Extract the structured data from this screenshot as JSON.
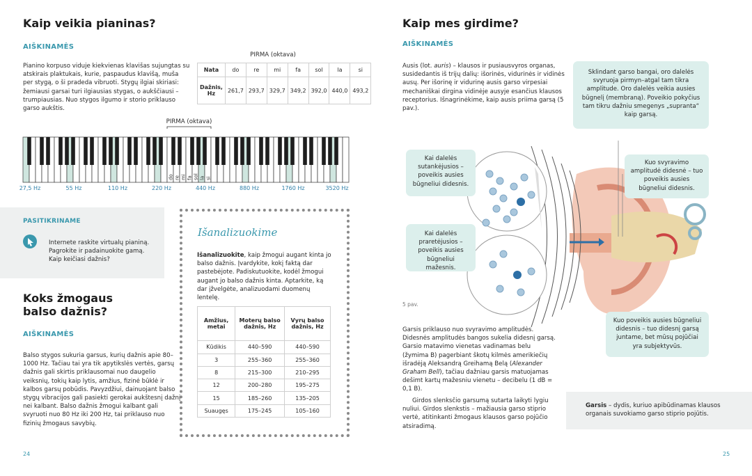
{
  "left": {
    "title": "Kaip veikia pianinas?",
    "label": "AIŠKINAMĖS",
    "text": "Pianino korpuso viduje kiekvienas klavišas sujungtas su atskirais plaktukais, kurie, paspaudus klavišą, muša per stygą, o ši pradeda vibruoti. Stygų ilgiai skiriasi: žemiausi garsai turi ilgiausias stygas, o aukščiausi – trumpiausias. Nuo stygos ilgumo ir storio priklauso garso aukštis.",
    "note_table": {
      "caption": "PIRMA (oktava)",
      "head": "Nata",
      "notes": [
        "do",
        "re",
        "mi",
        "fa",
        "sol",
        "la",
        "si"
      ],
      "row_label": "Dažnis, Hz",
      "freqs": [
        "261,7",
        "293,7",
        "329,7",
        "349,2",
        "392,0",
        "440,0",
        "493,2"
      ]
    },
    "piano": {
      "label": "PIRMA (oktava)",
      "key_notes": [
        "do",
        "re",
        "mi",
        "fa",
        "sol",
        "la",
        "si"
      ],
      "freq_labels": [
        "27,5 Hz",
        "55 Hz",
        "110 Hz",
        "220 Hz",
        "440 Hz",
        "880 Hz",
        "1760 Hz",
        "3520 Hz"
      ]
    },
    "check": {
      "label": "PASITIKRINAME",
      "text": "Internete raskite virtualų pianiną. Pagrokite ir padainuokite gamą. Kaip keičiasi dažnis?"
    },
    "voice": {
      "title": "Koks žmogaus balso dažnis?",
      "label": "AIŠKINAMĖS",
      "text": "Balso stygos sukuria garsus, kurių dažnis apie 80–1000 Hz. Tačiau tai yra tik apytikslės vertės, garsų dažnis gali skirtis priklausomai nuo daugelio veiksnių, tokių kaip lytis, amžius, fizinė būklė ir kalbos garsų pobūdis. Pavyzdžiui, dainuojant balso stygų vibracijos gali pasiekti gerokai aukštesnį dažnį nei kalbant. Balso dažnis žmogui kalbant gali svyruoti nuo 80 Hz iki 200 Hz, tai priklauso nuo fizinių žmogaus savybių."
    },
    "analyze": {
      "heading": "Išanalizuokime",
      "bold": "Išanalizuokite",
      "text": ", kaip žmogui augant kinta jo balso dažnis. Įvardykite, kokį faktą dar pastebėjote. Padiskutuokite, kodėl žmogui augant jo balso dažnis kinta. Aptarkite, ką dar įžvelgėte, analizuodami duomenų lentelę.",
      "table": {
        "header": [
          "Amžius, metai",
          "Moterų balso dažnis, Hz",
          "Vyrų balso dažnis, Hz"
        ],
        "rows": [
          [
            "Kūdikis",
            "440–590",
            "440–590"
          ],
          [
            "3",
            "255–360",
            "255–360"
          ],
          [
            "8",
            "215–300",
            "210–295"
          ],
          [
            "12",
            "200–280",
            "195–275"
          ],
          [
            "15",
            "185–260",
            "135–205"
          ],
          [
            "Suaugęs",
            "175–245",
            "105–160"
          ]
        ]
      }
    },
    "page": "24"
  },
  "right": {
    "title": "Kaip mes girdime?",
    "label": "AIŠKINAMĖS",
    "text": [
      "Ausis (lot. ",
      "auris",
      ") – klausos ir pusiausvyros organas, susidedantis iš trijų dalių: išorinės, vidurinės ir vidinės ausų. Per išorinę ir vidurinę ausis garso virpesiai mechaniškai dirgina vidinėje ausyje esančius klausos receptorius. Išnagrinėkime, kaip ausis priima garsą (5 pav.)."
    ],
    "callouts": [
      "Sklindant garso bangai, oro dalelės svyruoja pirmyn–atgal tam tikra amplitude. Oro dalelės veikia ausies būgnelį (membraną). Poveikio pokyčius tam tikru dažniu smegenys „supranta“ kaip garsą.",
      "Kai dalelės sutankėjusios – poveikis ausies būgneliui didesnis.",
      "Kai dalelės praretėjusios – poveikis ausies būgneliui mažesnis.",
      "Kuo svyravimo amplitudė didesnė – tuo poveikis ausies būgneliui didesnis.",
      "Kuo poveikis ausies būgneliui didesnis – tuo didesnį garsą juntame, bet mūsų pojūčiai yra subjektyvūs."
    ],
    "figure": "5 pav.",
    "text2": [
      "Garsis priklauso nuo svyravimo amplitudės. Didesnės amplitudės bangos sukelia didesnį garsą. Garsio matavimo vienetas vadinamas belu (žymima B) pagerbiant škotų kilmės amerikiečių išradėją Aleksandrą Greihamą Belą (",
      "Alexander Graham Bell",
      "), tačiau dažniau garsis matuojamas dešimt kartų mažesniu vienetu – decibelu (1 dB = 0,1 B)."
    ],
    "text3": "Girdos slenksčio garsumą sutarta laikyti lygiu nuliui. Girdos slenkstis – mažiausia garso stiprio vertė, atitinkanti žmogaus klausos garso pojūčio atsiradimą.",
    "definition": {
      "term": "Garsis",
      "text": " – dydis, kuriuo apibūdinamas klausos organais suvokiamo garso stiprio pojūtis."
    },
    "page": "25"
  }
}
